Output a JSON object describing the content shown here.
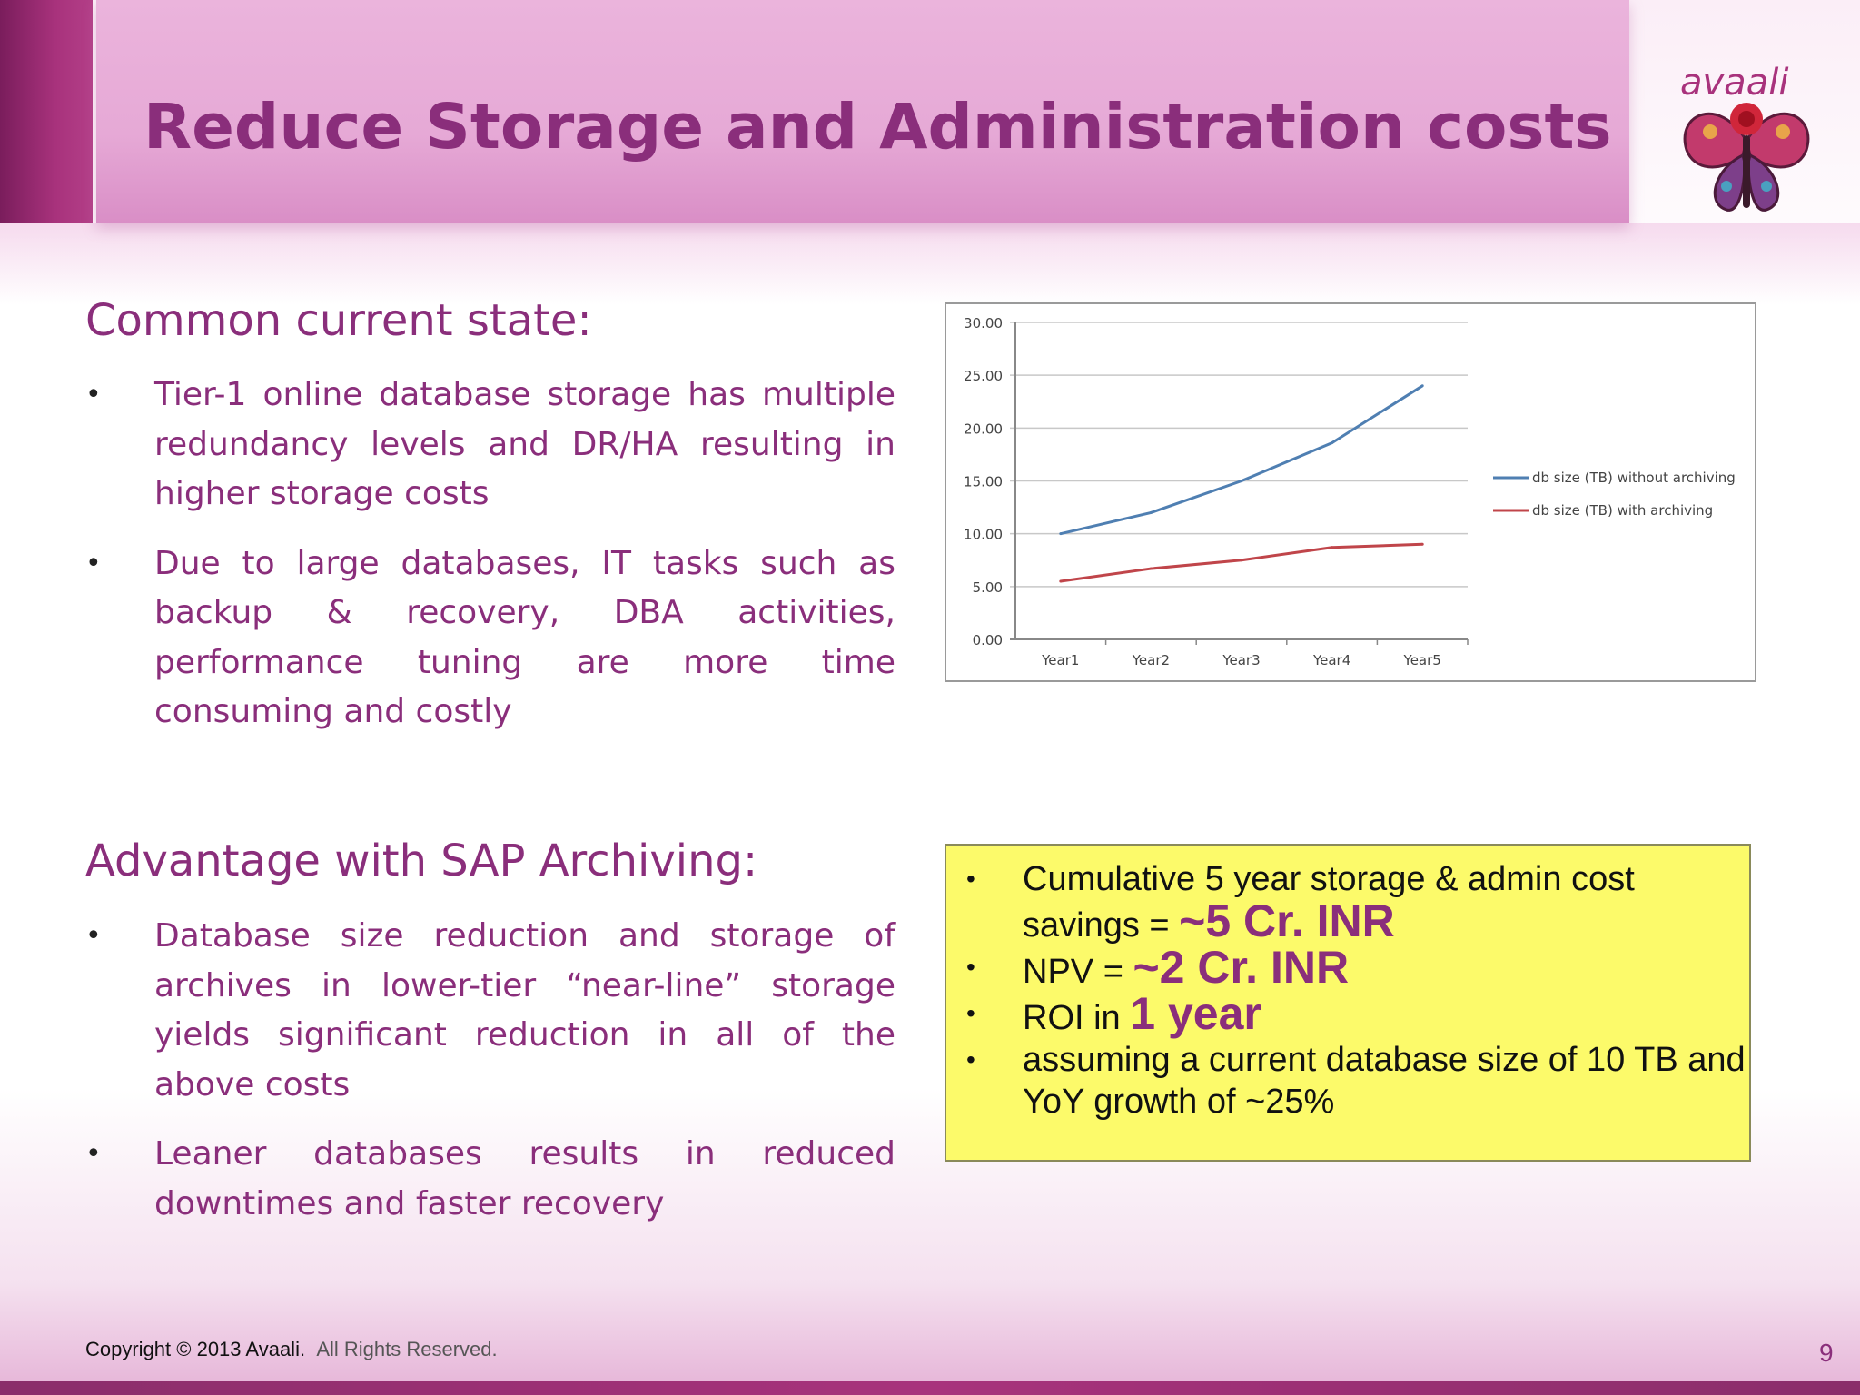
{
  "slide": {
    "title": "Reduce Storage and Administration costs",
    "logo_text": "avaali",
    "page_number": "9"
  },
  "current_state": {
    "heading": "Common current state:",
    "bullets": [
      "Tier-1 online database storage has multiple redundancy levels and DR/HA resulting in higher storage costs",
      "Due to large databases, IT tasks such as backup & recovery, DBA activities, performance tuning are more time consuming and costly"
    ]
  },
  "advantage": {
    "heading": "Advantage with SAP Archiving:",
    "bullets": [
      "Database size reduction and storage of archives in lower-tier “near-line” storage yields significant reduction in all of the above costs",
      "Leaner databases results in reduced downtimes and faster recovery"
    ]
  },
  "callout": {
    "item1_prefix": "Cumulative 5 year storage & admin cost savings = ",
    "item1_value": "~5 Cr. INR",
    "item2_prefix": "NPV = ",
    "item2_value": "~2 Cr. INR",
    "item3_prefix": "ROI in ",
    "item3_value": "1 year",
    "item4": "assuming a current database size of 10 TB and YoY growth of ~25%"
  },
  "footer": {
    "copyright": "Copyright © 2013 Avaali.",
    "rights": "All Rights Reserved."
  },
  "colors": {
    "accent": "#8a2e7b",
    "header_band": "#e6a9d6",
    "callout_bg": "#fcfa6a",
    "series_without": "#4f7fb2",
    "series_with": "#c0454a"
  },
  "chart_data": {
    "type": "line",
    "categories": [
      "Year1",
      "Year2",
      "Year3",
      "Year4",
      "Year5"
    ],
    "series": [
      {
        "name": "db size (TB) without archiving",
        "values": [
          10.0,
          12.0,
          15.0,
          18.6,
          24.0
        ]
      },
      {
        "name": "db size (TB) with archiving",
        "values": [
          5.5,
          6.7,
          7.5,
          8.7,
          9.0
        ]
      }
    ],
    "yticks": [
      "0.00",
      "5.00",
      "10.00",
      "15.00",
      "20.00",
      "25.00",
      "30.00"
    ],
    "ylim": [
      0,
      30
    ],
    "grid": true,
    "legend": "right"
  }
}
